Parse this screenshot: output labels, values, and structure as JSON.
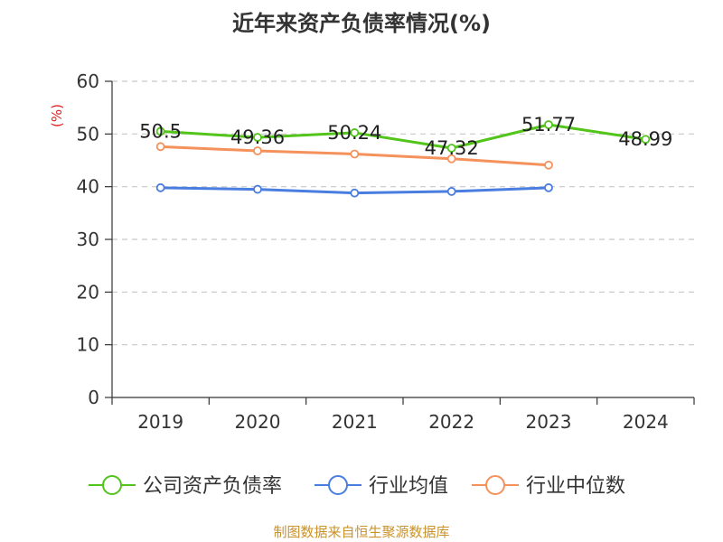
{
  "chart_data": {
    "type": "line",
    "title": "近年来资产负债率情况(%)",
    "ylabel": "(%)",
    "xlabel": "",
    "categories": [
      "2019",
      "2020",
      "2021",
      "2022",
      "2023",
      "2024"
    ],
    "ylim": [
      0,
      60
    ],
    "yticks": [
      0,
      10,
      20,
      30,
      40,
      50,
      60
    ],
    "grid": true,
    "legend_position": "bottom",
    "series": [
      {
        "name": "公司资产负债率",
        "color": "#52c41a",
        "values": [
          50.5,
          49.36,
          50.24,
          47.32,
          51.77,
          48.99
        ],
        "data_labels": [
          "50.5",
          "49.36",
          "50.24",
          "47.32",
          "51.77",
          "48.99"
        ]
      },
      {
        "name": "行业均值",
        "color": "#4a7de0",
        "values": [
          39.8,
          39.5,
          38.8,
          39.1,
          39.8,
          null
        ],
        "data_labels": []
      },
      {
        "name": "行业中位数",
        "color": "#f5915b",
        "values": [
          47.6,
          46.8,
          46.2,
          45.3,
          44.1,
          null
        ],
        "data_labels": []
      }
    ]
  },
  "footer": {
    "source": "制图数据来自恒生聚源数据库"
  }
}
